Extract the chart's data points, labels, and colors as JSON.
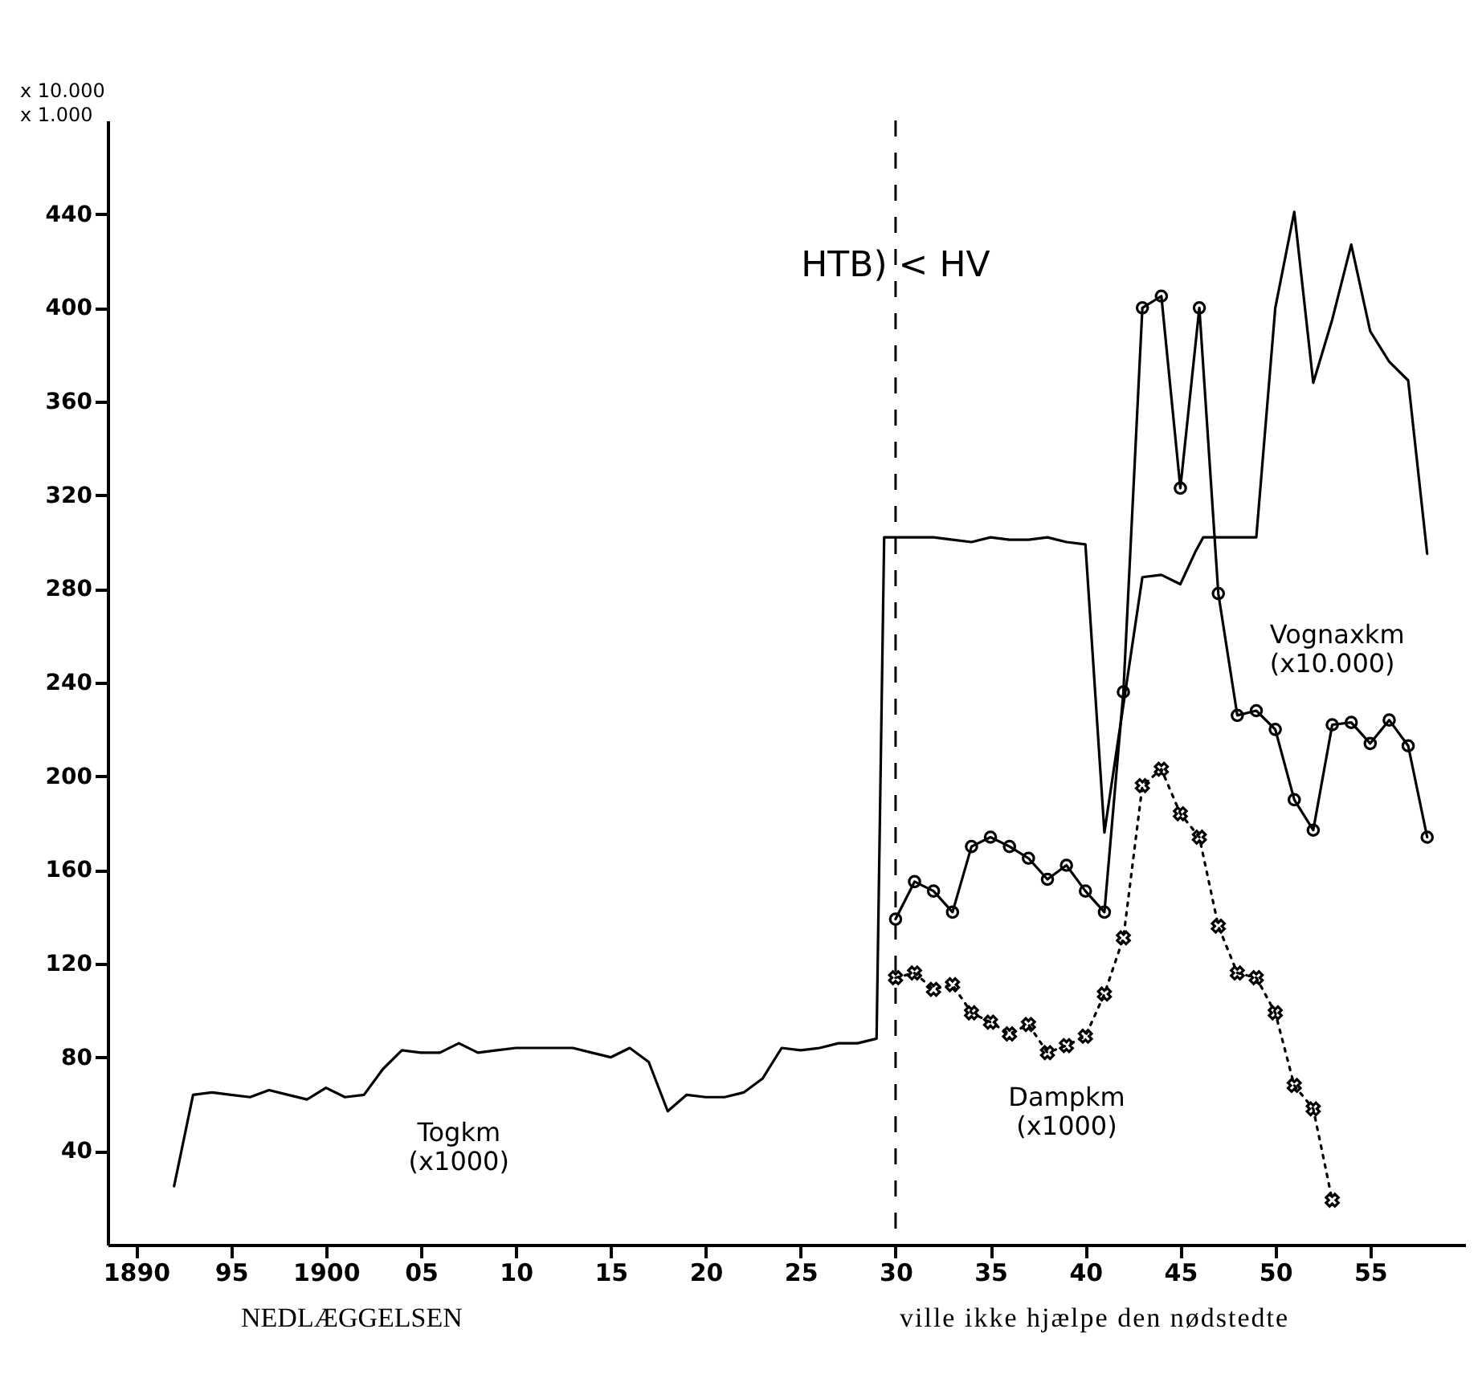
{
  "chart_data": {
    "type": "line",
    "ylabel": "x 10.000\nx 1.000",
    "xlim": [
      1888.5,
      1960
    ],
    "ylim": [
      0,
      480
    ],
    "xticks": [
      {
        "value": 1890,
        "label": "1890"
      },
      {
        "value": 1895,
        "label": "95"
      },
      {
        "value": 1900,
        "label": "1900"
      },
      {
        "value": 1905,
        "label": "05"
      },
      {
        "value": 1910,
        "label": "10"
      },
      {
        "value": 1915,
        "label": "15"
      },
      {
        "value": 1920,
        "label": "20"
      },
      {
        "value": 1925,
        "label": "25"
      },
      {
        "value": 1930,
        "label": "30"
      },
      {
        "value": 1935,
        "label": "35"
      },
      {
        "value": 1940,
        "label": "40"
      },
      {
        "value": 1945,
        "label": "45"
      },
      {
        "value": 1950,
        "label": "50"
      },
      {
        "value": 1955,
        "label": "55"
      }
    ],
    "yticks": [
      40,
      80,
      120,
      160,
      200,
      240,
      280,
      320,
      360,
      400,
      440
    ],
    "grid": false,
    "series": [
      {
        "name": "Togkm (x1000)",
        "color": "#000000",
        "marker": "none",
        "line_style": "solid",
        "x": [
          1892,
          1893,
          1894,
          1895,
          1896,
          1897,
          1898,
          1899,
          1900,
          1901,
          1902,
          1903,
          1904,
          1905,
          1906,
          1907,
          1908,
          1909,
          1910,
          1911,
          1912,
          1913,
          1914,
          1915,
          1916,
          1917,
          1918,
          1919,
          1920,
          1921,
          1922,
          1923,
          1924,
          1925,
          1926,
          1927,
          1928,
          1929,
          1929.4,
          1930,
          1931,
          1932,
          1933,
          1934,
          1935,
          1936,
          1937,
          1938,
          1939,
          1940,
          1941,
          1943,
          1944,
          1945,
          1945.8,
          1946.2,
          1947,
          1948,
          1949,
          1950,
          1951,
          1952,
          1953,
          1954,
          1955,
          1956,
          1957,
          1958
        ],
        "values": [
          25,
          64,
          65,
          64,
          63,
          66,
          64,
          62,
          67,
          63,
          64,
          75,
          83,
          82,
          82,
          86,
          82,
          83,
          84,
          84,
          84,
          84,
          82,
          80,
          84,
          78,
          57,
          64,
          63,
          63,
          65,
          71,
          84,
          83,
          84,
          86,
          86,
          88,
          302,
          302,
          302,
          302,
          301,
          300,
          302,
          301,
          301,
          302,
          300,
          299,
          176,
          285,
          286,
          282,
          296,
          302,
          302,
          302,
          302,
          400,
          441,
          368,
          395,
          427,
          390,
          377,
          369,
          295
        ]
      },
      {
        "name": "Vognaxkm (x10.000)",
        "color": "#000000",
        "marker": "circle",
        "line_style": "solid",
        "x": [
          1930,
          1931,
          1932,
          1933,
          1934,
          1935,
          1936,
          1937,
          1938,
          1939,
          1940,
          1941,
          1942,
          1943,
          1944,
          1945,
          1946,
          1947,
          1948,
          1949,
          1950,
          1951,
          1952,
          1953,
          1954,
          1955,
          1956,
          1957,
          1958
        ],
        "values": [
          139,
          155,
          151,
          142,
          170,
          174,
          170,
          165,
          156,
          162,
          151,
          142,
          236,
          400,
          405,
          323,
          400,
          278,
          226,
          228,
          220,
          190,
          177,
          222,
          223,
          214,
          224,
          213,
          174
        ]
      },
      {
        "name": "Dampkm (x1000)",
        "color": "#000000",
        "marker": "cross",
        "line_style": "dotted",
        "x": [
          1930,
          1931,
          1932,
          1933,
          1934,
          1935,
          1936,
          1937,
          1938,
          1939,
          1940,
          1941,
          1942,
          1943,
          1944,
          1945,
          1946,
          1947,
          1948,
          1949,
          1950,
          1951,
          1952,
          1953
        ],
        "values": [
          114,
          116,
          109,
          111,
          99,
          95,
          90,
          94,
          82,
          85,
          89,
          107,
          131,
          196,
          203,
          184,
          174,
          136,
          116,
          114,
          99,
          68,
          58,
          19
        ]
      }
    ],
    "ref_lines": [
      {
        "axis": "x",
        "value": 1930,
        "label": "HTB) < HV",
        "line_style": "dashed",
        "color": "#000000"
      }
    ],
    "annotations": [
      "NEDLÆGGELSEN",
      "ville ikke hjælpe den nødstedte"
    ]
  }
}
